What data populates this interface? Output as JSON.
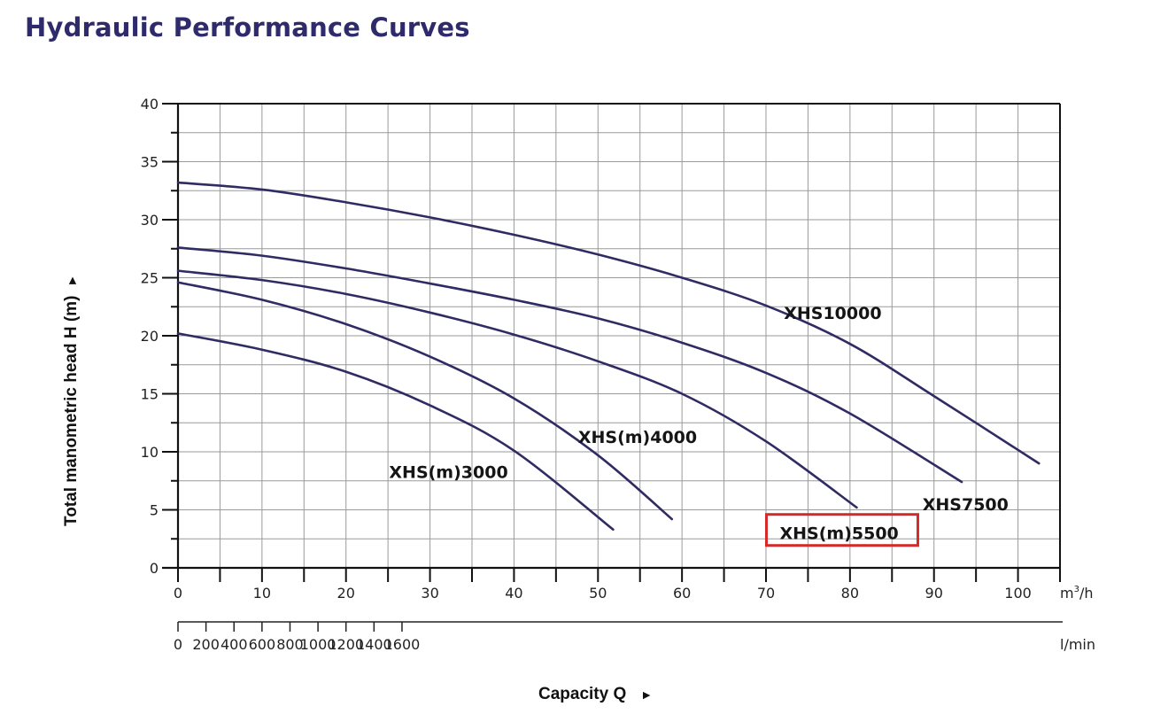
{
  "page": {
    "title": "Hydraulic Performance Curves"
  },
  "colors": {
    "title": "#2e2a6b",
    "curve": "#2f2b63",
    "grid": "#9a9a9a",
    "highlight": "#d62a2a"
  },
  "chart_data": {
    "type": "line",
    "title": "Hydraulic Performance Curves",
    "xlabel": "Capacity Q",
    "xlabel_arrow": "►",
    "ylabel": "Total manometric head H (m)",
    "ylabel_arrow": "►",
    "xlim": [
      0,
      105
    ],
    "ylim": [
      0,
      40
    ],
    "grid": true,
    "x_unit": "m³/h",
    "x_ticks": [
      0,
      10,
      20,
      30,
      40,
      50,
      60,
      70,
      80,
      90,
      100
    ],
    "x_tick_labels": [
      "0",
      "10",
      "20",
      "30",
      "40",
      "50",
      "60",
      "70",
      "80",
      "90",
      "100"
    ],
    "x_unit_label_base": "m",
    "x_unit_label_sup": "3",
    "x_unit_label_tail": "/h",
    "y_ticks": [
      0,
      5,
      10,
      15,
      20,
      25,
      30,
      35,
      40
    ],
    "y_tick_labels": [
      "0",
      "5",
      "10",
      "15",
      "20",
      "25",
      "30",
      "35",
      "40"
    ],
    "secondary_x_axis": {
      "unit": "l/min",
      "ticks": [
        0,
        200,
        400,
        600,
        800,
        1000,
        1200,
        1400,
        1600
      ],
      "tick_labels": [
        "0",
        "200",
        "400",
        "600",
        "800",
        "1000",
        "1200",
        "1400",
        "1600"
      ],
      "lim": [
        0,
        1750
      ]
    },
    "series": [
      {
        "name": "XHS10000",
        "highlighted": false,
        "x": [
          0,
          10,
          20,
          30,
          40,
          50,
          60,
          70,
          80,
          90,
          102.5
        ],
        "y": [
          33.2,
          32.6,
          31.5,
          30.2,
          28.7,
          27.0,
          25.0,
          22.6,
          19.3,
          14.8,
          9.0
        ]
      },
      {
        "name": "XHS7500",
        "highlighted": false,
        "x": [
          0,
          10,
          20,
          30,
          40,
          50,
          60,
          70,
          80,
          93.3
        ],
        "y": [
          27.6,
          26.9,
          25.8,
          24.5,
          23.1,
          21.5,
          19.4,
          16.8,
          13.3,
          7.4
        ]
      },
      {
        "name": "XHS(m)5500",
        "highlighted": true,
        "x": [
          0,
          10,
          20,
          30,
          40,
          50,
          60,
          70,
          80.8
        ],
        "y": [
          25.6,
          24.8,
          23.6,
          22.0,
          20.1,
          17.8,
          15.0,
          10.9,
          5.2
        ]
      },
      {
        "name": "XHS(m)4000",
        "highlighted": false,
        "x": [
          0,
          10,
          20,
          30,
          40,
          50,
          58.8
        ],
        "y": [
          24.6,
          23.1,
          21.0,
          18.2,
          14.6,
          9.7,
          4.2
        ]
      },
      {
        "name": "XHS(m)3000",
        "highlighted": false,
        "x": [
          0,
          10,
          20,
          30,
          40,
          51.8
        ],
        "y": [
          20.2,
          18.8,
          16.9,
          14.0,
          10.1,
          3.3
        ]
      }
    ],
    "annotations": [
      {
        "text": "XHS10000",
        "x": 71.5,
        "y": 22.0
      },
      {
        "text": "XHS7500",
        "x": 88.0,
        "y": 5.5
      },
      {
        "text": "XHS(m)5500",
        "x": 71.0,
        "y": 3.0,
        "boxed": true
      },
      {
        "text": "XHS(m)4000",
        "x": 47.0,
        "y": 11.3
      },
      {
        "text": "XHS(m)3000",
        "x": 24.5,
        "y": 8.3
      }
    ]
  }
}
